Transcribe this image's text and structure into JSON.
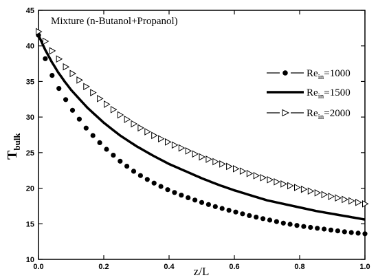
{
  "chart_data": {
    "type": "line",
    "annotation": "Mixture (n-Butanol+Propanol)",
    "xlabel": "z/L",
    "ylabel": {
      "main": "T",
      "sub": "bulk"
    },
    "xlim": [
      0,
      1.0
    ],
    "ylim": [
      10,
      45
    ],
    "xticks": [
      0.0,
      0.2,
      0.4,
      0.6,
      0.8,
      1.0
    ],
    "xtick_labels": [
      "0.0",
      "0.2",
      "0.4",
      "0.6",
      "0.8",
      "1.0"
    ],
    "yticks": [
      10,
      15,
      20,
      25,
      30,
      35,
      40,
      45
    ],
    "ytick_labels": [
      "10",
      "15",
      "20",
      "25",
      "30",
      "35",
      "40",
      "45"
    ],
    "grid": false,
    "legend_position": "right",
    "x": [
      0.0,
      0.02,
      0.04,
      0.06,
      0.08,
      0.1,
      0.15,
      0.2,
      0.25,
      0.3,
      0.35,
      0.4,
      0.45,
      0.5,
      0.55,
      0.6,
      0.65,
      0.7,
      0.75,
      0.8,
      0.85,
      0.9,
      0.95,
      1.0
    ],
    "series": [
      {
        "name_main": "Re",
        "name_sub": "in",
        "name_suffix": "=1000",
        "marker": "filled-circle",
        "values": [
          41.5,
          38.3,
          36.0,
          34.2,
          32.7,
          31.2,
          28.2,
          25.8,
          23.8,
          22.1,
          20.8,
          19.7,
          18.8,
          18.0,
          17.3,
          16.7,
          16.1,
          15.6,
          15.1,
          14.7,
          14.4,
          14.1,
          13.8,
          13.6
        ]
      },
      {
        "name_main": "Re",
        "name_sub": "in",
        "name_suffix": "=1500",
        "marker": "none",
        "values": [
          41.5,
          39.5,
          37.8,
          36.3,
          35.0,
          33.8,
          31.3,
          29.2,
          27.4,
          25.9,
          24.6,
          23.4,
          22.4,
          21.4,
          20.5,
          19.7,
          19.0,
          18.3,
          17.8,
          17.3,
          16.8,
          16.4,
          16.0,
          15.6
        ]
      },
      {
        "name_main": "Re",
        "name_sub": "in",
        "name_suffix": "=2000",
        "marker": "open-triangle-right",
        "values": [
          42.0,
          40.7,
          39.4,
          38.3,
          37.2,
          36.3,
          34.1,
          32.1,
          30.3,
          28.8,
          27.5,
          26.4,
          25.4,
          24.4,
          23.6,
          22.8,
          22.0,
          21.3,
          20.6,
          20.0,
          19.4,
          18.8,
          18.3,
          17.8
        ]
      }
    ]
  }
}
